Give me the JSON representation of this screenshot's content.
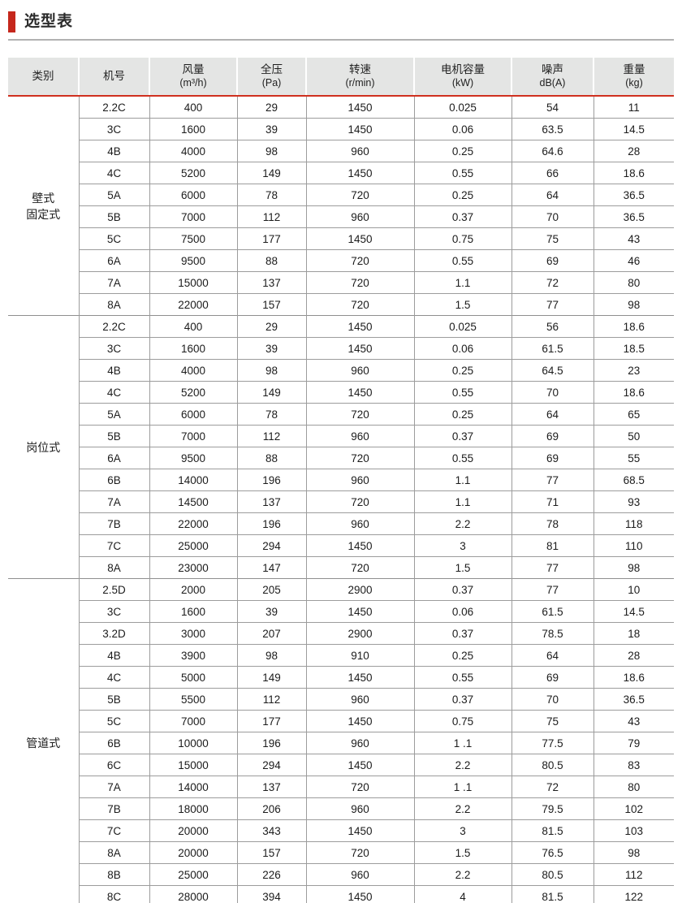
{
  "page": {
    "title": "选型表"
  },
  "colors": {
    "accent_red": "#c5271c",
    "header_rule_red": "#d0301f",
    "header_bg": "#e4e5e4",
    "grid_line": "#9c9c9c",
    "title_underline": "#b2b2b2"
  },
  "table": {
    "columns": [
      {
        "key": "category",
        "label": "类别",
        "sub": ""
      },
      {
        "key": "model-no",
        "label": "机号",
        "sub": ""
      },
      {
        "key": "air-volume",
        "label": "风量",
        "sub": "(m³/h)"
      },
      {
        "key": "total-pressure",
        "label": "全压",
        "sub": "(Pa)"
      },
      {
        "key": "rotation-speed",
        "label": "转速",
        "sub": "(r/min)"
      },
      {
        "key": "motor-capacity",
        "label": "电机容量",
        "sub": "(kW)"
      },
      {
        "key": "noise",
        "label": "噪声",
        "sub": "dB(A)"
      },
      {
        "key": "weight",
        "label": "重量",
        "sub": "(kg)"
      }
    ],
    "sections": [
      {
        "key": "wall-fixed",
        "category": "壁式固定式",
        "category_lines": [
          "壁式",
          "固定式"
        ],
        "rows": [
          [
            "2.2C",
            "400",
            "29",
            "1450",
            "0.025",
            "54",
            "11"
          ],
          [
            "3C",
            "1600",
            "39",
            "1450",
            "0.06",
            "63.5",
            "14.5"
          ],
          [
            "4B",
            "4000",
            "98",
            "960",
            "0.25",
            "64.6",
            "28"
          ],
          [
            "4C",
            "5200",
            "149",
            "1450",
            "0.55",
            "66",
            "18.6"
          ],
          [
            "5A",
            "6000",
            "78",
            "720",
            "0.25",
            "64",
            "36.5"
          ],
          [
            "5B",
            "7000",
            "112",
            "960",
            "0.37",
            "70",
            "36.5"
          ],
          [
            "5C",
            "7500",
            "177",
            "1450",
            "0.75",
            "75",
            "43"
          ],
          [
            "6A",
            "9500",
            "88",
            "720",
            "0.55",
            "69",
            "46"
          ],
          [
            "7A",
            "15000",
            "137",
            "720",
            "1.1",
            "72",
            "80"
          ],
          [
            "8A",
            "22000",
            "157",
            "720",
            "1.5",
            "77",
            "98"
          ]
        ]
      },
      {
        "key": "station",
        "category": "岗位式",
        "category_lines": [
          "岗位式"
        ],
        "rows": [
          [
            "2.2C",
            "400",
            "29",
            "1450",
            "0.025",
            "56",
            "18.6"
          ],
          [
            "3C",
            "1600",
            "39",
            "1450",
            "0.06",
            "61.5",
            "18.5"
          ],
          [
            "4B",
            "4000",
            "98",
            "960",
            "0.25",
            "64.5",
            "23"
          ],
          [
            "4C",
            "5200",
            "149",
            "1450",
            "0.55",
            "70",
            "18.6"
          ],
          [
            "5A",
            "6000",
            "78",
            "720",
            "0.25",
            "64",
            "65"
          ],
          [
            "5B",
            "7000",
            "112",
            "960",
            "0.37",
            "69",
            "50"
          ],
          [
            "6A",
            "9500",
            "88",
            "720",
            "0.55",
            "69",
            "55"
          ],
          [
            "6B",
            "14000",
            "196",
            "960",
            "1.1",
            "77",
            "68.5"
          ],
          [
            "7A",
            "14500",
            "137",
            "720",
            "1.1",
            "71",
            "93"
          ],
          [
            "7B",
            "22000",
            "196",
            "960",
            "2.2",
            "78",
            "118"
          ],
          [
            "7C",
            "25000",
            "294",
            "1450",
            "3",
            "81",
            "110"
          ],
          [
            "8A",
            "23000",
            "147",
            "720",
            "1.5",
            "77",
            "98"
          ]
        ]
      },
      {
        "key": "duct",
        "category": "管道式",
        "category_lines": [
          "管道式"
        ],
        "rows": [
          [
            "2.5D",
            "2000",
            "205",
            "2900",
            "0.37",
            "77",
            "10"
          ],
          [
            "3C",
            "1600",
            "39",
            "1450",
            "0.06",
            "61.5",
            "14.5"
          ],
          [
            "3.2D",
            "3000",
            "207",
            "2900",
            "0.37",
            "78.5",
            "18"
          ],
          [
            "4B",
            "3900",
            "98",
            "910",
            "0.25",
            "64",
            "28"
          ],
          [
            "4C",
            "5000",
            "149",
            "1450",
            "0.55",
            "69",
            "18.6"
          ],
          [
            "5B",
            "5500",
            "112",
            "960",
            "0.37",
            "70",
            "36.5"
          ],
          [
            "5C",
            "7000",
            "177",
            "1450",
            "0.75",
            "75",
            "43"
          ],
          [
            "6B",
            "10000",
            "196",
            "960",
            "1 .1",
            "77.5",
            "79"
          ],
          [
            "6C",
            "15000",
            "294",
            "1450",
            "2.2",
            "80.5",
            "83"
          ],
          [
            "7A",
            "14000",
            "137",
            "720",
            "1 .1",
            "72",
            "80"
          ],
          [
            "7B",
            "18000",
            "206",
            "960",
            "2.2",
            "79.5",
            "102"
          ],
          [
            "7C",
            "20000",
            "343",
            "1450",
            "3",
            "81.5",
            "103"
          ],
          [
            "8A",
            "20000",
            "157",
            "720",
            "1.5",
            "76.5",
            "98"
          ],
          [
            "8B",
            "25000",
            "226",
            "960",
            "2.2",
            "80.5",
            "112"
          ],
          [
            "8C",
            "28000",
            "394",
            "1450",
            "4",
            "81.5",
            "122"
          ]
        ]
      }
    ]
  }
}
